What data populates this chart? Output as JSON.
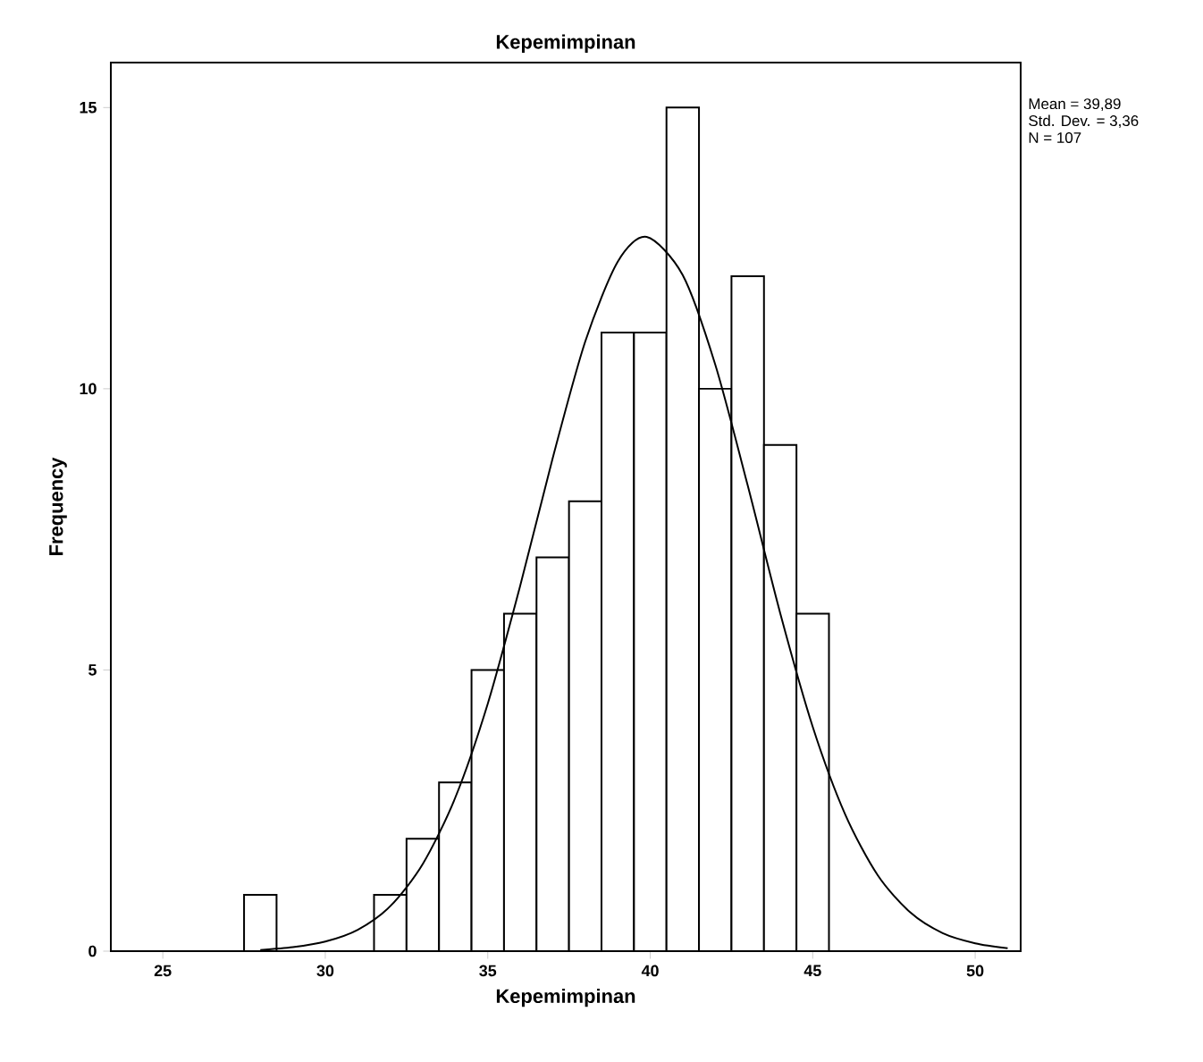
{
  "chart_data": {
    "type": "histogram",
    "title": "Kepemimpinan",
    "xlabel": "Kepemimpinan",
    "ylabel": "Frequency",
    "bins": [
      27.5,
      28.5,
      29.5,
      30.5,
      31.5,
      32.5,
      33.5,
      34.5,
      35.5,
      36.5,
      37.5,
      38.5,
      39.5,
      40.5,
      41.5,
      42.5,
      43.5,
      44.5,
      45.5
    ],
    "values": [
      1,
      0,
      0,
      0,
      1,
      2,
      3,
      5,
      6,
      7,
      8,
      11,
      11,
      15,
      10,
      12,
      9,
      6
    ],
    "color": "#ffffff",
    "series": [
      {
        "type": "line",
        "color": "#000000",
        "x": [
          28,
          29,
          30,
          31,
          32,
          33,
          34,
          35,
          36,
          37,
          38,
          39,
          39.89,
          41,
          42,
          43,
          44,
          45,
          46,
          47,
          48,
          49,
          50,
          51
        ],
        "values": [
          0.02,
          0.07,
          0.17,
          0.38,
          0.8,
          1.55,
          2.73,
          4.4,
          6.5,
          8.77,
          10.84,
          12.26,
          12.7,
          12.02,
          10.43,
          8.28,
          6.01,
          3.99,
          2.43,
          1.35,
          0.69,
          0.32,
          0.14,
          0.05
        ]
      }
    ],
    "xlim": [
      23.4,
      51.4
    ],
    "ylim": [
      0,
      15.8
    ],
    "xticks": [
      25,
      30,
      35,
      40,
      45,
      50
    ],
    "yticks": [
      0,
      5,
      10,
      15
    ],
    "annotations": [
      "Mean = 39,89",
      "Std. Dev. = 3,36",
      "N = 107"
    ]
  }
}
